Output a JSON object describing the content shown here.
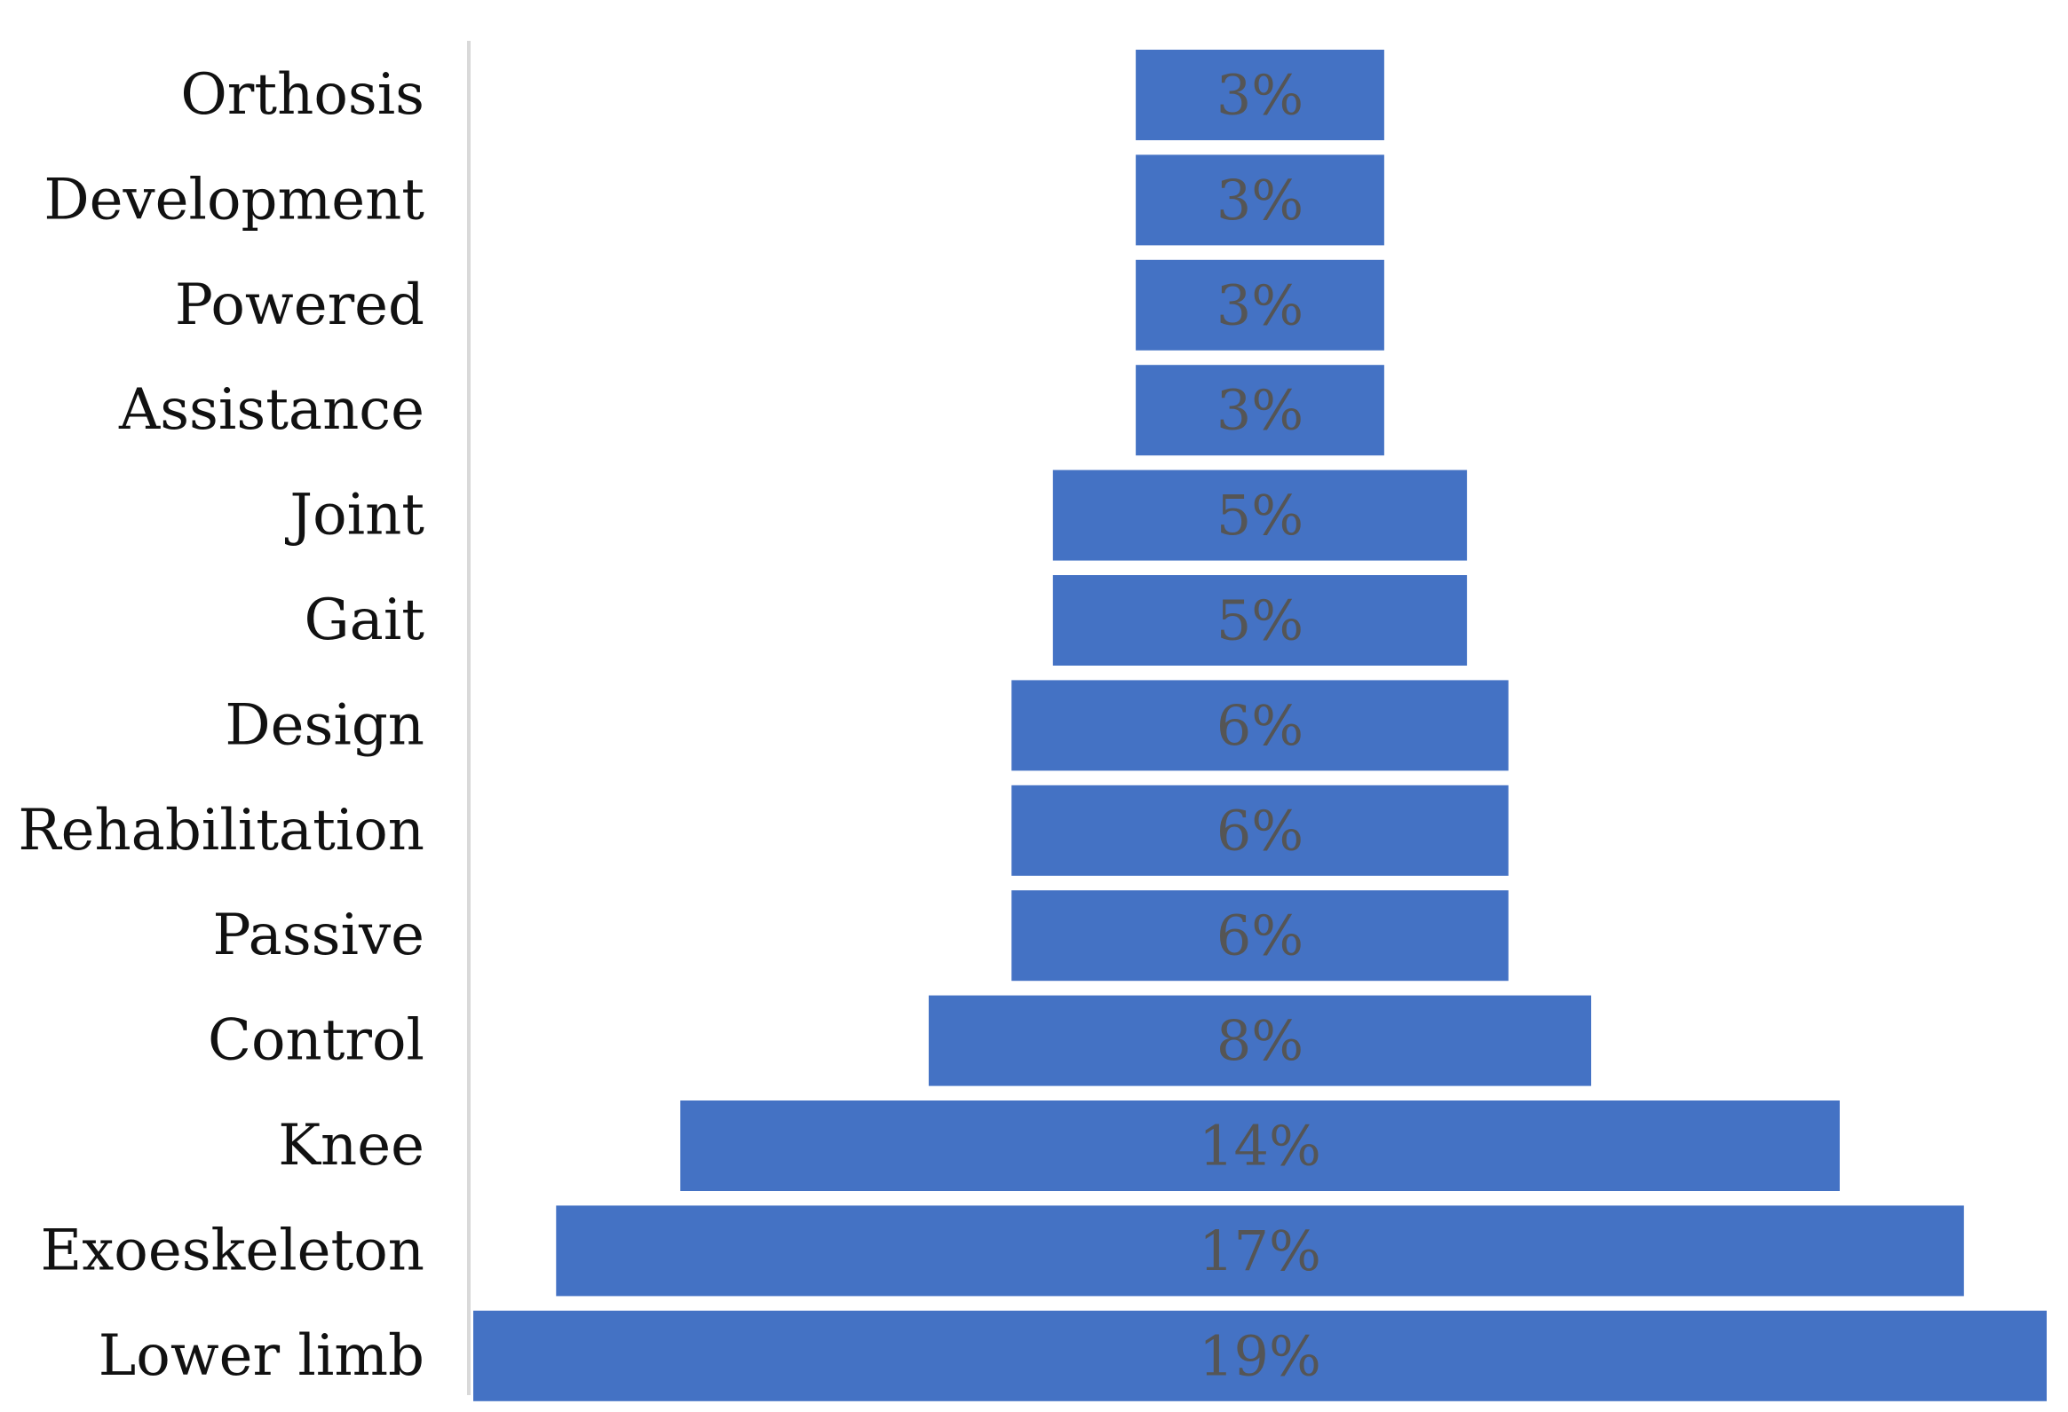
{
  "chart_data": {
    "type": "bar",
    "orientation": "horizontal",
    "style": "funnel-centered",
    "categories": [
      "Orthosis",
      "Development",
      "Powered",
      "Assistance",
      "Joint",
      "Gait",
      "Design",
      "Rehabilitation",
      "Passive",
      "Control",
      "Knee",
      "Exoeskeleton",
      "Lower limb"
    ],
    "values": [
      3,
      3,
      3,
      3,
      5,
      5,
      6,
      6,
      6,
      8,
      14,
      17,
      19
    ],
    "value_labels": [
      "3%",
      "3%",
      "3%",
      "3%",
      "5%",
      "5%",
      "6%",
      "6%",
      "6%",
      "8%",
      "14%",
      "17%",
      "19%"
    ],
    "unit": "%",
    "bar_color": "#4472C4",
    "label_color": "#555555",
    "axis_line_color": "#D9D9D9",
    "title": "",
    "xlabel": "",
    "ylabel": "",
    "grid": false,
    "legend": "none"
  }
}
